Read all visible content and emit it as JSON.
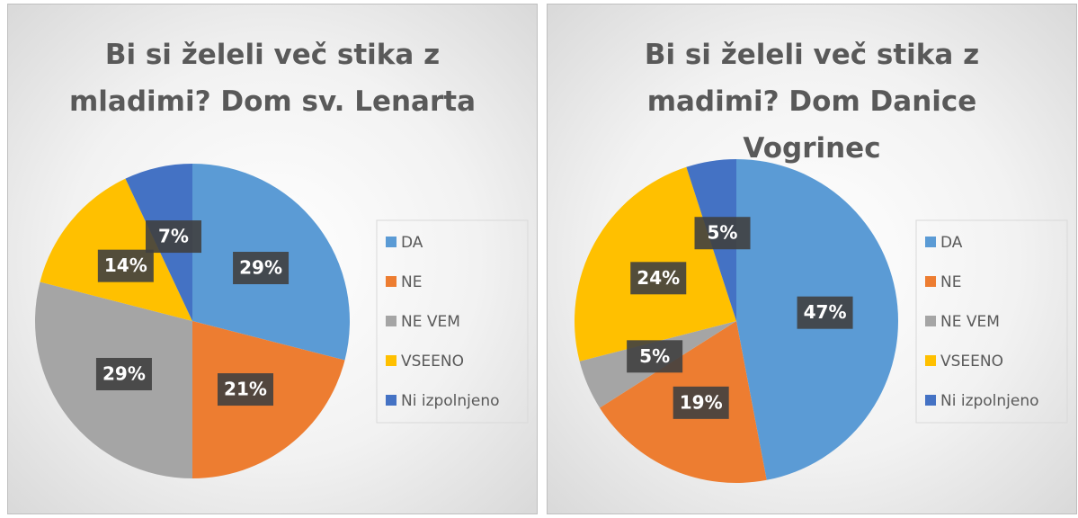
{
  "chart_data": [
    {
      "type": "pie",
      "title": "Bi si želeli več stika z mladimi? Dom sv. Lenarta",
      "categories": [
        "DA",
        "NE",
        "NE VEM",
        "VSEENO",
        "Ni izpolnjeno"
      ],
      "values": [
        29,
        21,
        29,
        14,
        7
      ],
      "value_labels": [
        "29%",
        "21%",
        "29%",
        "14%",
        "7%"
      ],
      "colors": [
        "#5b9bd5",
        "#ed7d31",
        "#a5a5a5",
        "#ffc000",
        "#4472c4"
      ],
      "legend": "right"
    },
    {
      "type": "pie",
      "title": "Bi si želeli več stika z madimi? Dom Danice Vogrinec",
      "categories": [
        "DA",
        "NE",
        "NE VEM",
        "VSEENO",
        "Ni izpolnjeno"
      ],
      "values": [
        47,
        19,
        5,
        24,
        5
      ],
      "value_labels": [
        "47%",
        "19%",
        "5%",
        "24%",
        "5%"
      ],
      "colors": [
        "#5b9bd5",
        "#ed7d31",
        "#a5a5a5",
        "#ffc000",
        "#4472c4"
      ],
      "legend": "right"
    }
  ]
}
